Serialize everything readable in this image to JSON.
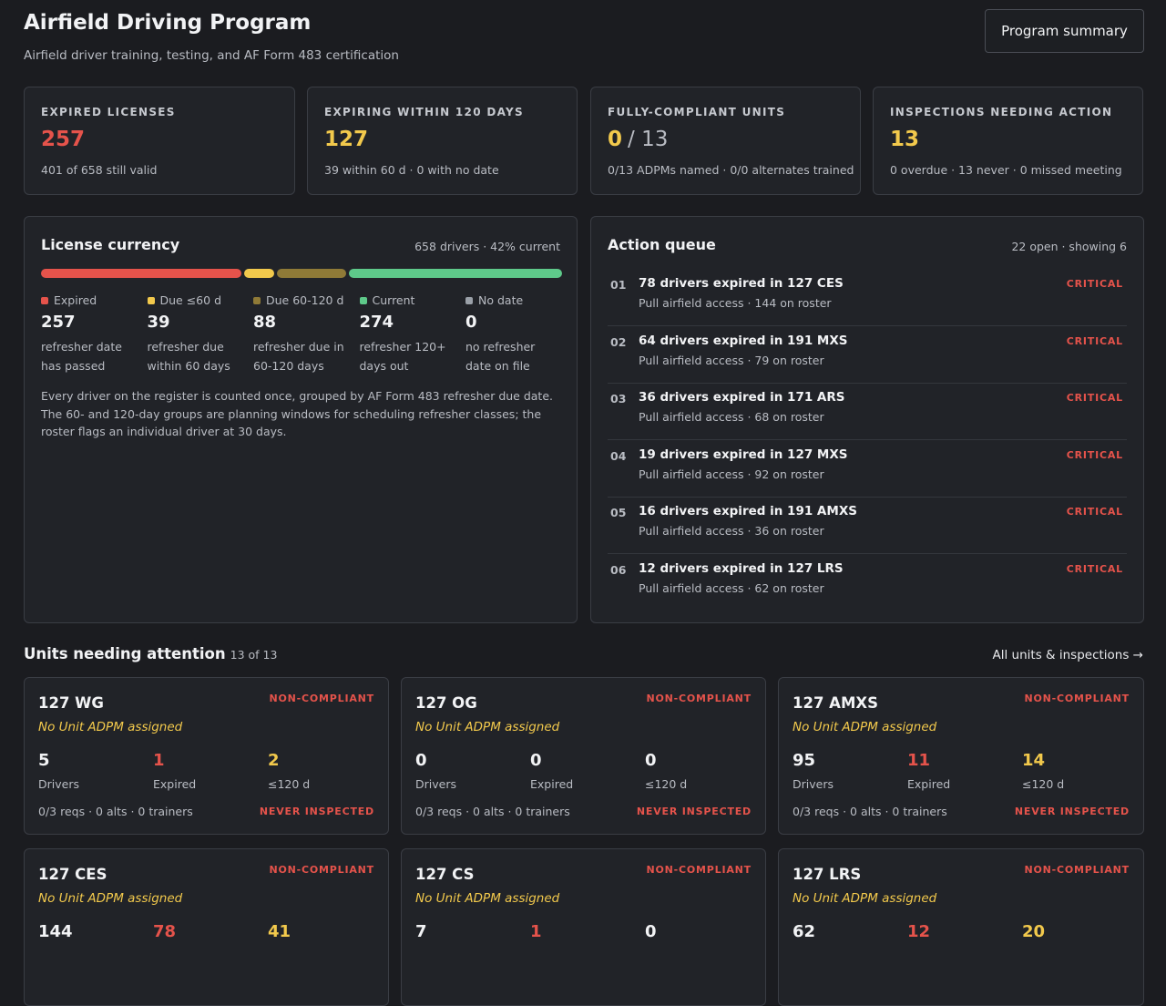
{
  "header": {
    "title": "Airfield Driving Program",
    "subtitle": "Airfield driver training, testing, and AF Form 483 certification",
    "button": "Program summary"
  },
  "kpis": [
    {
      "label": "EXPIRED LICENSES",
      "value": 257,
      "color": "#e5534b",
      "note": "401 of 658 still valid"
    },
    {
      "label": "EXPIRING WITHIN 120 DAYS",
      "value": 127,
      "color": "#f2c94c",
      "note": "39 within 60 d · 0 with no date"
    },
    {
      "label": "FULLY-COMPLIANT UNITS",
      "value": 0,
      "rest": "/ 13",
      "color": "#f2c94c",
      "note": "0/13 ADPMs named · 0/0 alternates trained"
    },
    {
      "label": "INSPECTIONS NEEDING ACTION",
      "value": 13,
      "color": "#f2c94c",
      "note": "0 overdue · 13 never · 0 missed meeting"
    }
  ],
  "license": {
    "title": "License currency",
    "meta": "658 drivers · 42% current",
    "segments": [
      {
        "name": "Expired",
        "value": 257,
        "color": "#e5534b",
        "desc": "refresher date has passed"
      },
      {
        "name": "Due ≤60 d",
        "value": 39,
        "color": "#f2c94c",
        "desc": "refresher due within 60 days"
      },
      {
        "name": "Due 60-120 d",
        "value": 88,
        "color": "#8f7a37",
        "desc": "refresher due in 60-120 days"
      },
      {
        "name": "Current",
        "value": 274,
        "color": "#5ec98a",
        "desc": "refresher 120+ days out"
      },
      {
        "name": "No date",
        "value": 0,
        "color": "#9aa0a8",
        "desc": "no refresher date on file"
      }
    ],
    "note": "Every driver on the register is counted once, grouped by AF Form 483 refresher due date. The 60- and 120-day groups are planning windows for scheduling refresher classes; the roster flags an individual driver at 30 days."
  },
  "queue": {
    "title": "Action queue",
    "meta": "22 open · showing 6",
    "items": [
      {
        "num": "01",
        "title": "78 drivers expired in 127 CES",
        "sub": "Pull airfield access · 144 on roster",
        "tag": "CRITICAL"
      },
      {
        "num": "02",
        "title": "64 drivers expired in 191 MXS",
        "sub": "Pull airfield access · 79 on roster",
        "tag": "CRITICAL"
      },
      {
        "num": "03",
        "title": "36 drivers expired in 171 ARS",
        "sub": "Pull airfield access · 68 on roster",
        "tag": "CRITICAL"
      },
      {
        "num": "04",
        "title": "19 drivers expired in 127 MXS",
        "sub": "Pull airfield access · 92 on roster",
        "tag": "CRITICAL"
      },
      {
        "num": "05",
        "title": "16 drivers expired in 191 AMXS",
        "sub": "Pull airfield access · 36 on roster",
        "tag": "CRITICAL"
      },
      {
        "num": "06",
        "title": "12 drivers expired in 127 LRS",
        "sub": "Pull airfield access · 62 on roster",
        "tag": "CRITICAL"
      }
    ]
  },
  "units": {
    "title": "Units needing attention",
    "count": "13 of 13",
    "link": "All units & inspections →",
    "cards": [
      {
        "name": "127 WG",
        "status": "NON-COMPLIANT",
        "adpm": "No Unit ADPM assigned",
        "stats": [
          {
            "value": 5,
            "label": "Drivers"
          },
          {
            "value": 1,
            "label": "Expired"
          },
          {
            "value": 2,
            "label": "≤120 d"
          }
        ],
        "footer": "0/3 reqs · 0 alts · 0 trainers",
        "inspection": "NEVER INSPECTED"
      },
      {
        "name": "127 OG",
        "status": "NON-COMPLIANT",
        "adpm": "No Unit ADPM assigned",
        "stats": [
          {
            "value": 0,
            "label": "Drivers"
          },
          {
            "value": 0,
            "label": "Expired"
          },
          {
            "value": 0,
            "label": "≤120 d"
          }
        ],
        "footer": "0/3 reqs · 0 alts · 0 trainers",
        "inspection": "NEVER INSPECTED"
      },
      {
        "name": "127 AMXS",
        "status": "NON-COMPLIANT",
        "adpm": "No Unit ADPM assigned",
        "stats": [
          {
            "value": 95,
            "label": "Drivers"
          },
          {
            "value": 11,
            "label": "Expired"
          },
          {
            "value": 14,
            "label": "≤120 d"
          }
        ],
        "footer": "0/3 reqs · 0 alts · 0 trainers",
        "inspection": "NEVER INSPECTED"
      },
      {
        "name": "127 CES",
        "status": "NON-COMPLIANT",
        "adpm": "No Unit ADPM assigned",
        "stats": [
          {
            "value": 144
          },
          {
            "value": 78
          },
          {
            "value": 41
          }
        ]
      },
      {
        "name": "127 CS",
        "status": "NON-COMPLIANT",
        "adpm": "No Unit ADPM assigned",
        "stats": [
          {
            "value": 7
          },
          {
            "value": 1
          },
          {
            "value": 0
          }
        ]
      },
      {
        "name": "127 LRS",
        "status": "NON-COMPLIANT",
        "adpm": "No Unit ADPM assigned",
        "stats": [
          {
            "value": 62
          },
          {
            "value": 12
          },
          {
            "value": 20
          }
        ]
      }
    ]
  }
}
